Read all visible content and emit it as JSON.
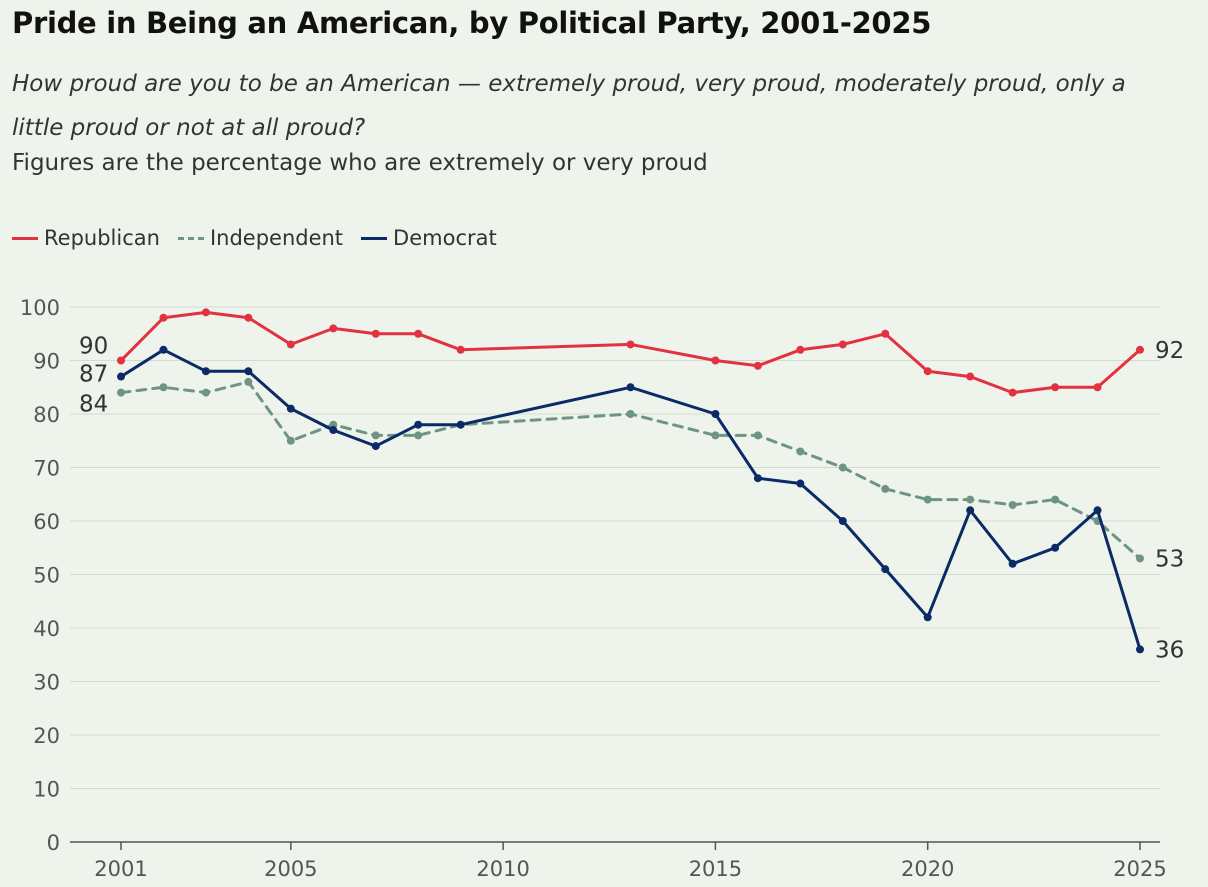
{
  "header": {
    "title": "Pride in Being an American, by Political Party, 2001-2025",
    "question": "How proud are you to be an American — extremely proud, very proud, moderately proud, only a little proud or not at all proud?",
    "note": "Figures are the percentage who are extremely or very proud"
  },
  "chart_data": {
    "type": "line",
    "xlim": [
      2001,
      2025
    ],
    "ylim": [
      0,
      100
    ],
    "x_ticks": [
      2001,
      2005,
      2010,
      2015,
      2020,
      2025
    ],
    "y_ticks": [
      0,
      10,
      20,
      30,
      40,
      50,
      60,
      70,
      80,
      90,
      100
    ],
    "grid": "horizontal",
    "legend_position": "top-left",
    "series": [
      {
        "name": "Republican",
        "color": "#e3323f",
        "style": "solid",
        "points": [
          [
            2001,
            90
          ],
          [
            2002,
            98
          ],
          [
            2003,
            99
          ],
          [
            2004,
            98
          ],
          [
            2005,
            93
          ],
          [
            2006,
            96
          ],
          [
            2007,
            95
          ],
          [
            2008,
            95
          ],
          [
            2009,
            92
          ],
          [
            2013,
            93
          ],
          [
            2015,
            90
          ],
          [
            2016,
            89
          ],
          [
            2017,
            92
          ],
          [
            2018,
            93
          ],
          [
            2019,
            95
          ],
          [
            2020,
            88
          ],
          [
            2021,
            87
          ],
          [
            2022,
            84
          ],
          [
            2023,
            85
          ],
          [
            2024,
            85
          ],
          [
            2025,
            92
          ]
        ],
        "start_label": "90",
        "end_label": "92"
      },
      {
        "name": "Independent",
        "color": "#6e9484",
        "style": "dashed",
        "points": [
          [
            2001,
            84
          ],
          [
            2002,
            85
          ],
          [
            2003,
            84
          ],
          [
            2004,
            86
          ],
          [
            2005,
            75
          ],
          [
            2006,
            78
          ],
          [
            2007,
            76
          ],
          [
            2008,
            76
          ],
          [
            2009,
            78
          ],
          [
            2013,
            80
          ],
          [
            2015,
            76
          ],
          [
            2016,
            76
          ],
          [
            2017,
            73
          ],
          [
            2018,
            70
          ],
          [
            2019,
            66
          ],
          [
            2020,
            64
          ],
          [
            2021,
            64
          ],
          [
            2022,
            63
          ],
          [
            2023,
            64
          ],
          [
            2024,
            60
          ],
          [
            2025,
            53
          ]
        ],
        "start_label": "84",
        "end_label": "53"
      },
      {
        "name": "Democrat",
        "color": "#0c2a66",
        "style": "solid",
        "points": [
          [
            2001,
            87
          ],
          [
            2002,
            92
          ],
          [
            2003,
            88
          ],
          [
            2004,
            88
          ],
          [
            2005,
            81
          ],
          [
            2006,
            77
          ],
          [
            2007,
            74
          ],
          [
            2008,
            78
          ],
          [
            2009,
            78
          ],
          [
            2013,
            85
          ],
          [
            2015,
            80
          ],
          [
            2016,
            68
          ],
          [
            2017,
            67
          ],
          [
            2018,
            60
          ],
          [
            2019,
            51
          ],
          [
            2020,
            42
          ],
          [
            2021,
            62
          ],
          [
            2022,
            52
          ],
          [
            2023,
            55
          ],
          [
            2024,
            62
          ],
          [
            2025,
            36
          ]
        ],
        "start_label": "87",
        "end_label": "36"
      }
    ]
  }
}
